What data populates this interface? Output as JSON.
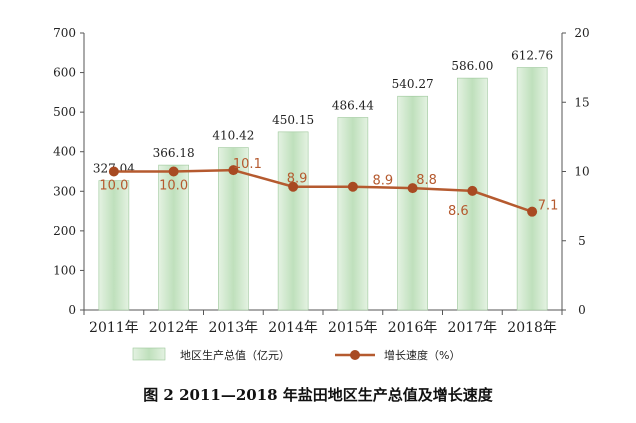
{
  "chart_data": {
    "type": "bar",
    "title": "图 2    2011—2018 年盐田地区生产总值及增长速度",
    "categories": [
      "2011年",
      "2012年",
      "2013年",
      "2014年",
      "2015年",
      "2016年",
      "2017年",
      "2018年"
    ],
    "series": [
      {
        "name": "地区生产总值（亿元）",
        "type": "bar",
        "axis": "left",
        "values": [
          327.04,
          366.18,
          410.42,
          450.15,
          486.44,
          540.27,
          586.0,
          612.76
        ],
        "labels": [
          "327.04",
          "366.18",
          "410.42",
          "450.15",
          "486.44",
          "540.27",
          "586.00",
          "612.76"
        ]
      },
      {
        "name": "增长速度（%）",
        "type": "line",
        "axis": "right",
        "values": [
          10.0,
          10.0,
          10.1,
          8.9,
          8.9,
          8.8,
          8.6,
          7.1
        ],
        "labels": [
          "10.0",
          "10.0",
          "10.1",
          "8.9",
          "8.9",
          "8.8",
          "8.6",
          "7.1"
        ]
      }
    ],
    "y_left": {
      "min": 0,
      "max": 700,
      "ticks": [
        "0",
        "100",
        "200",
        "300",
        "400",
        "500",
        "600",
        "700"
      ]
    },
    "y_right": {
      "min": 0,
      "max": 20,
      "ticks": [
        "0",
        "5",
        "10",
        "15",
        "20"
      ]
    },
    "grid": false,
    "legend": "bottom",
    "colors": {
      "bar": "#c6e3c4",
      "bar_edge": "#9cc79a",
      "line": "#b55a2f",
      "marker": "#a84a22"
    }
  }
}
